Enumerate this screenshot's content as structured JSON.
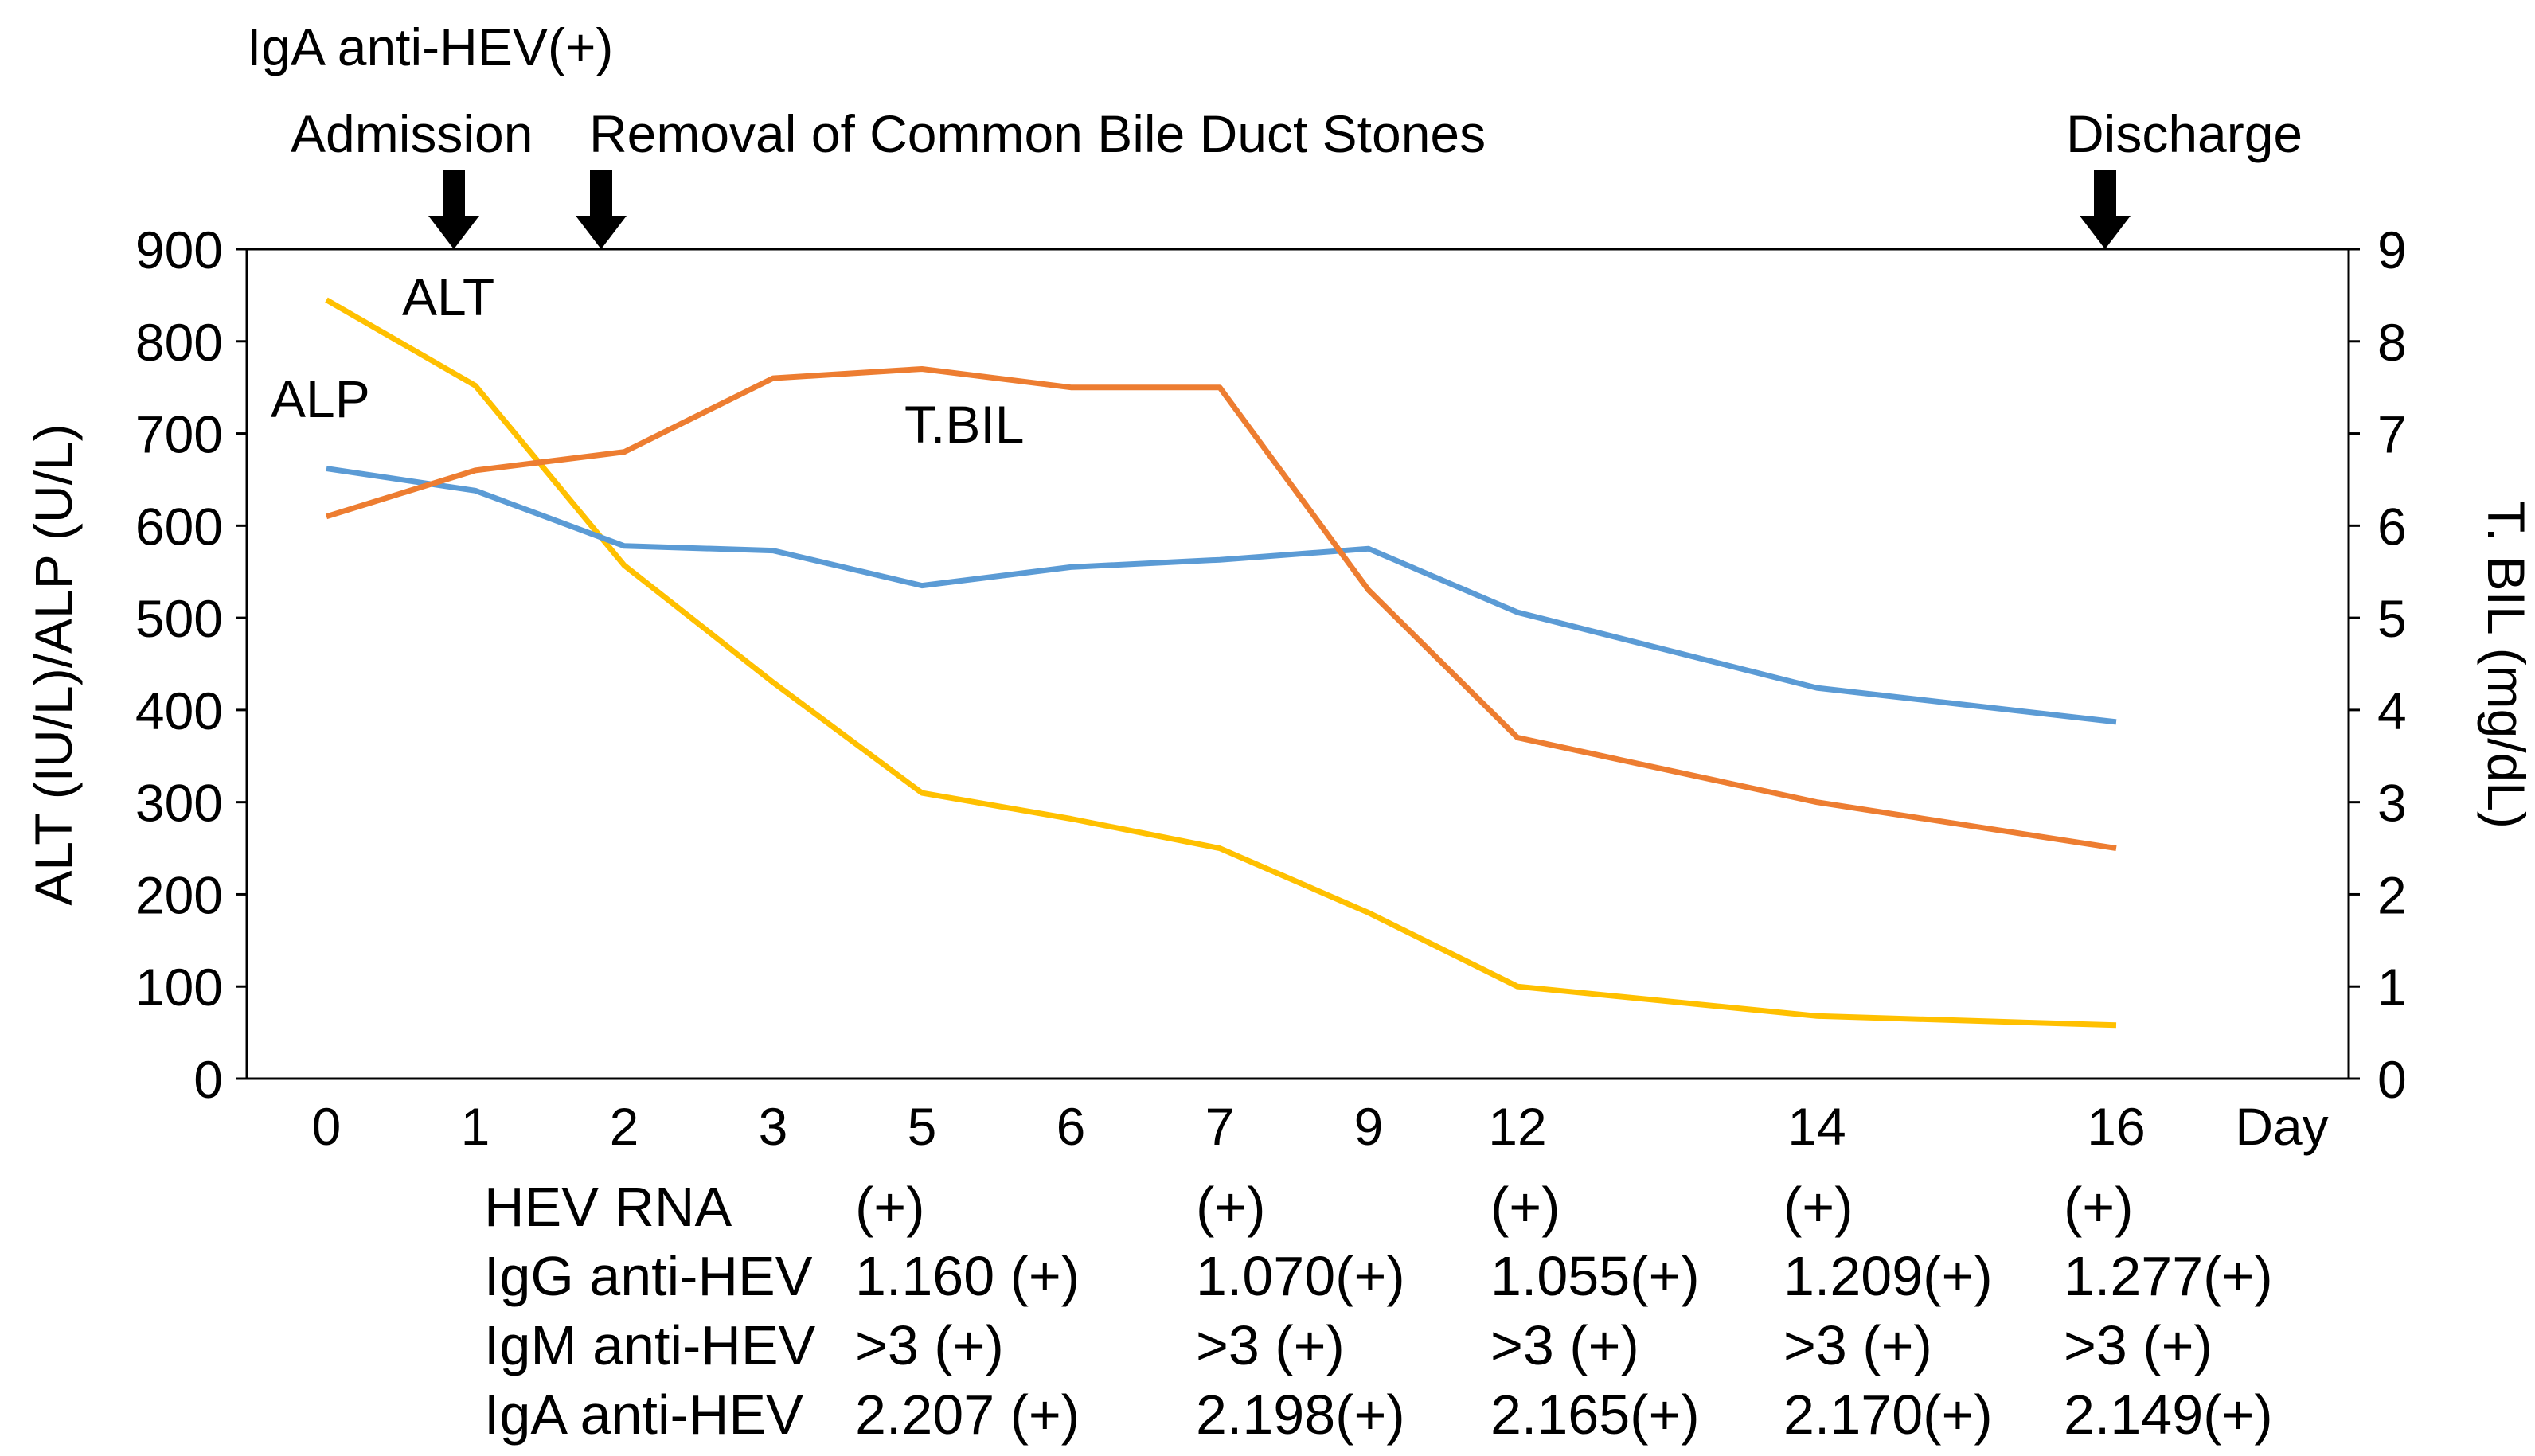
{
  "chart_data": {
    "type": "line",
    "x_unit_label": "Day",
    "categories": [
      "0",
      "1",
      "2",
      "3",
      "5",
      "6",
      "7",
      "9",
      "12",
      "14",
      "16"
    ],
    "ylabel_left": "ALT (IU/L)/ALP (U/L)",
    "ylabel_right": "T. BIL (mg/dL)",
    "ylim_left": [
      0,
      900
    ],
    "ylim_right": [
      0,
      9
    ],
    "yticks_left": [
      "0",
      "100",
      "200",
      "300",
      "400",
      "500",
      "600",
      "700",
      "800",
      "900"
    ],
    "yticks_right": [
      "0",
      "1",
      "2",
      "3",
      "4",
      "5",
      "6",
      "7",
      "8",
      "9"
    ],
    "series": [
      {
        "name": "ALT",
        "axis": "left",
        "color": "#FFC000",
        "values": [
          845,
          752,
          557,
          430,
          310,
          282,
          250,
          180,
          100,
          68,
          58
        ]
      },
      {
        "name": "ALP",
        "axis": "left",
        "color": "#5B9BD5",
        "values": [
          662,
          638,
          578,
          573,
          535,
          555,
          563,
          575,
          506,
          424,
          387
        ]
      },
      {
        "name": "T.BIL",
        "axis": "right",
        "color": "#ED7D31",
        "values": [
          6.1,
          6.6,
          6.8,
          7.6,
          7.7,
          7.5,
          7.5,
          5.3,
          3.7,
          3.0,
          2.5
        ]
      }
    ],
    "annotations": [
      {
        "id": "igaTop",
        "text": "IgA anti-HEV(+)"
      },
      {
        "id": "admission",
        "text": "Admission",
        "arrow_day": "1"
      },
      {
        "id": "removal",
        "text": "Removal of Common Bile Duct Stones",
        "arrow_day": "2"
      },
      {
        "id": "discharge",
        "text": "Discharge",
        "arrow_day": "16"
      }
    ],
    "series_labels": {
      "ALT": "ALT",
      "ALP": "ALP",
      "T.BIL": "T.BIL"
    }
  },
  "table": {
    "columns_days": [
      "5",
      "7",
      "12",
      "14",
      "16"
    ],
    "rows": [
      {
        "label": "HEV RNA",
        "values": [
          "(+)",
          "(+)",
          "(+)",
          "(+)",
          "(+)"
        ]
      },
      {
        "label": "IgG anti-HEV",
        "values": [
          "1.160 (+)",
          "1.070(+)",
          "1.055(+)",
          "1.209(+)",
          "1.277(+)"
        ]
      },
      {
        "label": "IgM anti-HEV",
        "values": [
          ">3 (+)",
          ">3 (+)",
          ">3 (+)",
          ">3 (+)",
          ">3 (+)"
        ]
      },
      {
        "label": "IgA anti-HEV",
        "values": [
          "2.207 (+)",
          "2.198(+)",
          "2.165(+)",
          "2.170(+)",
          "2.149(+)"
        ]
      }
    ]
  }
}
